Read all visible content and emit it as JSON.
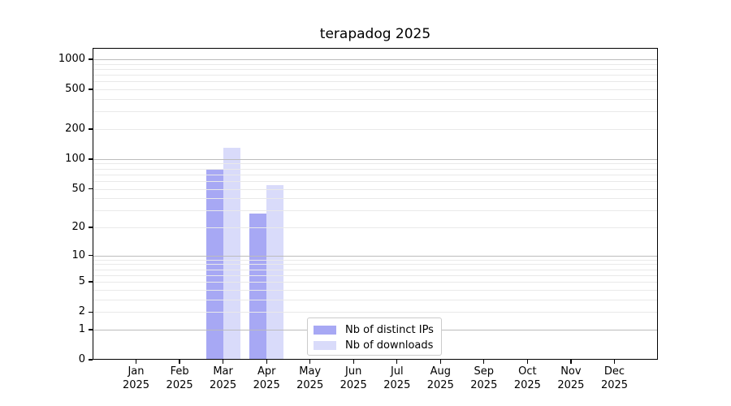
{
  "chart_data": {
    "type": "bar",
    "title": "terapadog 2025",
    "categories": [
      "Jan 2025",
      "Feb 2025",
      "Mar 2025",
      "Apr 2025",
      "May 2025",
      "Jun 2025",
      "Jul 2025",
      "Aug 2025",
      "Sep 2025",
      "Oct 2025",
      "Nov 2025",
      "Dec 2025"
    ],
    "series": [
      {
        "name": "Nb of distinct IPs",
        "color": "#a7a8f4",
        "values": [
          0,
          0,
          79,
          28,
          0,
          0,
          0,
          0,
          0,
          0,
          0,
          0
        ]
      },
      {
        "name": "Nb of downloads",
        "color": "#d9dbfa",
        "values": [
          0,
          0,
          129,
          54,
          0,
          0,
          0,
          0,
          0,
          0,
          0,
          0
        ]
      }
    ],
    "xlabel": "",
    "ylabel": "",
    "yscale": "log1p",
    "yticks": [
      0,
      1,
      2,
      5,
      10,
      20,
      50,
      100,
      200,
      500,
      1000
    ],
    "ylim": [
      0,
      1300
    ],
    "grid": "on",
    "legend_position": "lower center",
    "colors": {
      "major_grid": "#bcbcbc",
      "minor_grid": "#e9e9e9",
      "spine": "#000000",
      "text": "#000000",
      "background": "#ffffff"
    }
  }
}
